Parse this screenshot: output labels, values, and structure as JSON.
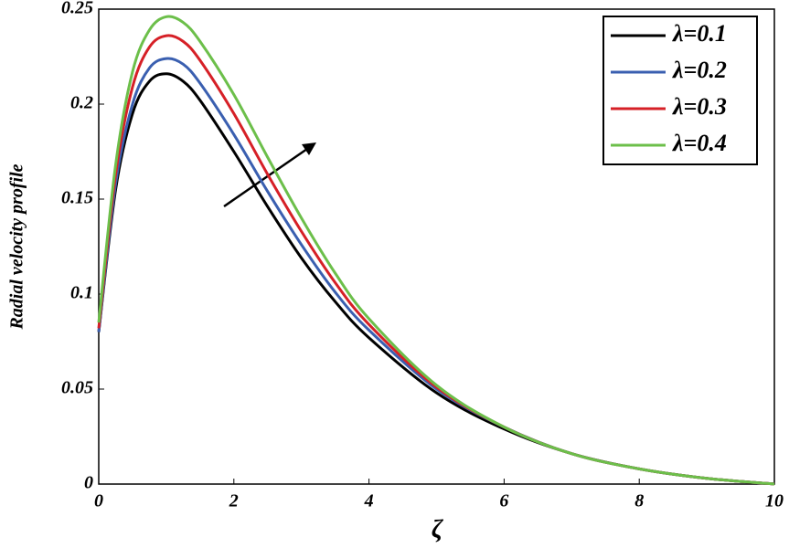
{
  "chart_data": {
    "type": "line",
    "x_label": "ζ",
    "y_label": "Radial velocity profile",
    "x": [
      0,
      0.25,
      0.5,
      0.75,
      1,
      1.25,
      1.5,
      2,
      2.5,
      3,
      3.5,
      4,
      5,
      6,
      7,
      8,
      9,
      10
    ],
    "series": [
      {
        "name": "λ=0.1",
        "color": "#000000",
        "values": [
          0.08,
          0.155,
          0.195,
          0.212,
          0.216,
          0.212,
          0.202,
          0.175,
          0.146,
          0.119,
          0.096,
          0.077,
          0.048,
          0.029,
          0.016,
          0.008,
          0.003,
          0
        ]
      },
      {
        "name": "λ=0.2",
        "color": "#3a5fb0",
        "values": [
          0.08,
          0.158,
          0.2,
          0.219,
          0.224,
          0.221,
          0.211,
          0.184,
          0.154,
          0.126,
          0.101,
          0.081,
          0.05,
          0.03,
          0.016,
          0.008,
          0.003,
          0
        ]
      },
      {
        "name": "λ=0.3",
        "color": "#d62027",
        "values": [
          0.082,
          0.163,
          0.209,
          0.23,
          0.236,
          0.233,
          0.223,
          0.195,
          0.163,
          0.133,
          0.106,
          0.084,
          0.051,
          0.03,
          0.016,
          0.008,
          0.003,
          0
        ]
      },
      {
        "name": "λ=0.4",
        "color": "#6cbf4a",
        "values": [
          0.085,
          0.168,
          0.217,
          0.239,
          0.246,
          0.243,
          0.233,
          0.205,
          0.172,
          0.14,
          0.111,
          0.087,
          0.052,
          0.03,
          0.016,
          0.008,
          0.003,
          0
        ]
      }
    ],
    "xlim": [
      0,
      10
    ],
    "xticks": [
      0,
      2,
      4,
      6,
      8,
      10
    ],
    "ylim": [
      0,
      0.25
    ],
    "yticks": [
      0,
      0.05,
      0.1,
      0.15,
      0.2,
      0.25
    ],
    "grid": false,
    "legend": "upper right"
  }
}
